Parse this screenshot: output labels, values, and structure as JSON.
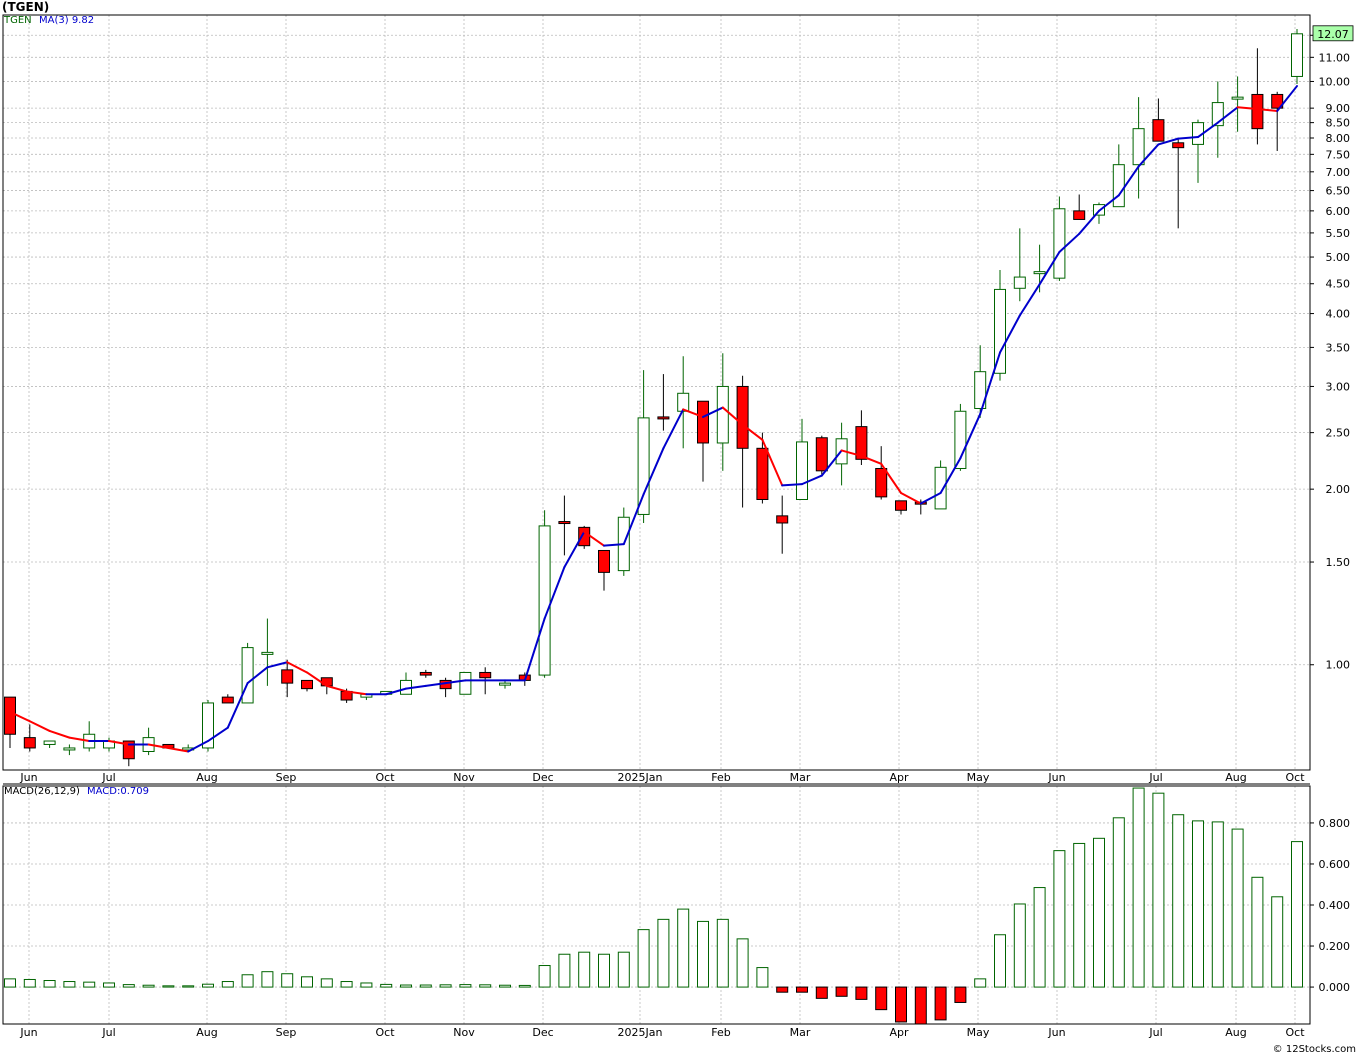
{
  "header": {
    "title": "(TGEN)",
    "symbol": "TGEN",
    "ma_legend": "MA(3)  9.82",
    "macd_legend": "MACD(26,12,9)",
    "macd_value": "MACD:0.709",
    "footer": "© 12Stocks.com"
  },
  "colors": {
    "up": "#006400",
    "down": "#ff0000",
    "ma_up": "#0000cc",
    "ma_down": "#ff0000",
    "grid": "#bbbbbb",
    "price_tag_bg": "#aaffaa"
  },
  "chart_data": [
    {
      "type": "candlestick",
      "scale": "log",
      "y_ticks": [
        "1.00",
        "1.50",
        "2.00",
        "2.50",
        "3.00",
        "3.50",
        "4.00",
        "4.50",
        "5.00",
        "5.50",
        "6.00",
        "6.50",
        "7.00",
        "7.50",
        "8.00",
        "8.50",
        "9.00",
        "10.00",
        "11.00",
        "12.00"
      ],
      "y_range": [
        0.66,
        13.0
      ],
      "x_labels": [
        "Jun",
        "Jul",
        "Aug",
        "Sep",
        "Oct",
        "Nov",
        "Dec",
        "2025Jan",
        "Feb",
        "Mar",
        "Apr",
        "May",
        "Jun",
        "Jul",
        "Aug",
        "Oct"
      ],
      "last_price": "12.07",
      "ma_label": "MA(3)",
      "ma_last": 9.82,
      "candles": [
        {
          "o": 0.88,
          "h": 0.88,
          "l": 0.72,
          "c": 0.76
        },
        {
          "o": 0.75,
          "h": 0.79,
          "l": 0.71,
          "c": 0.72
        },
        {
          "o": 0.73,
          "h": 0.74,
          "l": 0.72,
          "c": 0.74
        },
        {
          "o": 0.72,
          "h": 0.73,
          "l": 0.7,
          "c": 0.72
        },
        {
          "o": 0.72,
          "h": 0.8,
          "l": 0.71,
          "c": 0.76
        },
        {
          "o": 0.72,
          "h": 0.75,
          "l": 0.71,
          "c": 0.74
        },
        {
          "o": 0.74,
          "h": 0.74,
          "l": 0.67,
          "c": 0.69
        },
        {
          "o": 0.71,
          "h": 0.78,
          "l": 0.7,
          "c": 0.75
        },
        {
          "o": 0.73,
          "h": 0.73,
          "l": 0.72,
          "c": 0.72
        },
        {
          "o": 0.72,
          "h": 0.73,
          "l": 0.72,
          "c": 0.72
        },
        {
          "o": 0.72,
          "h": 0.87,
          "l": 0.71,
          "c": 0.86
        },
        {
          "o": 0.88,
          "h": 0.89,
          "l": 0.86,
          "c": 0.86
        },
        {
          "o": 0.86,
          "h": 1.09,
          "l": 0.86,
          "c": 1.07
        },
        {
          "o": 1.05,
          "h": 1.2,
          "l": 0.92,
          "c": 1.05
        },
        {
          "o": 0.98,
          "h": 1.02,
          "l": 0.88,
          "c": 0.93
        },
        {
          "o": 0.94,
          "h": 0.94,
          "l": 0.9,
          "c": 0.91
        },
        {
          "o": 0.95,
          "h": 0.94,
          "l": 0.89,
          "c": 0.92
        },
        {
          "o": 0.9,
          "h": 0.91,
          "l": 0.86,
          "c": 0.87
        },
        {
          "o": 0.88,
          "h": 0.89,
          "l": 0.87,
          "c": 0.89
        },
        {
          "o": 0.89,
          "h": 0.9,
          "l": 0.89,
          "c": 0.9
        },
        {
          "o": 0.89,
          "h": 0.97,
          "l": 0.89,
          "c": 0.94
        },
        {
          "o": 0.97,
          "h": 0.98,
          "l": 0.95,
          "c": 0.96
        },
        {
          "o": 0.94,
          "h": 0.95,
          "l": 0.88,
          "c": 0.91
        },
        {
          "o": 0.89,
          "h": 0.97,
          "l": 0.89,
          "c": 0.97
        },
        {
          "o": 0.97,
          "h": 0.99,
          "l": 0.89,
          "c": 0.95
        },
        {
          "o": 0.93,
          "h": 0.94,
          "l": 0.91,
          "c": 0.93
        },
        {
          "o": 0.96,
          "h": 0.97,
          "l": 0.92,
          "c": 0.94
        },
        {
          "o": 0.96,
          "h": 1.84,
          "l": 0.95,
          "c": 1.73
        },
        {
          "o": 1.76,
          "h": 1.95,
          "l": 1.54,
          "c": 1.75
        },
        {
          "o": 1.72,
          "h": 1.73,
          "l": 1.58,
          "c": 1.6
        },
        {
          "o": 1.57,
          "h": 1.57,
          "l": 1.34,
          "c": 1.44
        },
        {
          "o": 1.45,
          "h": 1.86,
          "l": 1.42,
          "c": 1.79
        },
        {
          "o": 1.81,
          "h": 3.2,
          "l": 1.75,
          "c": 2.65
        },
        {
          "o": 2.66,
          "h": 3.15,
          "l": 2.52,
          "c": 2.65
        },
        {
          "o": 2.72,
          "h": 3.38,
          "l": 2.35,
          "c": 2.92
        },
        {
          "o": 2.83,
          "h": 2.83,
          "l": 2.06,
          "c": 2.4
        },
        {
          "o": 2.4,
          "h": 3.42,
          "l": 2.15,
          "c": 3.0
        },
        {
          "o": 3.0,
          "h": 3.13,
          "l": 1.86,
          "c": 2.35
        },
        {
          "o": 2.35,
          "h": 2.5,
          "l": 1.89,
          "c": 1.92
        },
        {
          "o": 1.8,
          "h": 1.95,
          "l": 1.55,
          "c": 1.75
        },
        {
          "o": 1.92,
          "h": 2.64,
          "l": 1.92,
          "c": 2.41
        },
        {
          "o": 2.45,
          "h": 2.47,
          "l": 2.12,
          "c": 2.15
        },
        {
          "o": 2.21,
          "h": 2.6,
          "l": 2.03,
          "c": 2.44
        },
        {
          "o": 2.56,
          "h": 2.73,
          "l": 2.2,
          "c": 2.25
        },
        {
          "o": 2.17,
          "h": 2.37,
          "l": 1.92,
          "c": 1.94
        },
        {
          "o": 1.91,
          "h": 1.91,
          "l": 1.81,
          "c": 1.84
        },
        {
          "o": 1.9,
          "h": 1.92,
          "l": 1.81,
          "c": 1.89
        },
        {
          "o": 1.85,
          "h": 2.24,
          "l": 1.85,
          "c": 2.18
        },
        {
          "o": 2.17,
          "h": 2.8,
          "l": 2.15,
          "c": 2.72
        },
        {
          "o": 2.75,
          "h": 3.53,
          "l": 2.65,
          "c": 3.18
        },
        {
          "o": 3.16,
          "h": 4.75,
          "l": 3.07,
          "c": 4.4
        },
        {
          "o": 4.42,
          "h": 5.6,
          "l": 4.2,
          "c": 4.62
        },
        {
          "o": 4.7,
          "h": 5.25,
          "l": 4.35,
          "c": 4.72
        },
        {
          "o": 4.6,
          "h": 6.35,
          "l": 4.55,
          "c": 6.05
        },
        {
          "o": 6.0,
          "h": 6.4,
          "l": 5.8,
          "c": 5.8
        },
        {
          "o": 5.9,
          "h": 6.2,
          "l": 5.7,
          "c": 6.15
        },
        {
          "o": 6.1,
          "h": 7.8,
          "l": 6.1,
          "c": 7.2
        },
        {
          "o": 7.2,
          "h": 9.4,
          "l": 6.3,
          "c": 8.3
        },
        {
          "o": 8.6,
          "h": 9.35,
          "l": 7.9,
          "c": 7.9
        },
        {
          "o": 7.85,
          "h": 8.0,
          "l": 5.6,
          "c": 7.7
        },
        {
          "o": 7.8,
          "h": 8.6,
          "l": 6.7,
          "c": 8.5
        },
        {
          "o": 8.4,
          "h": 10.0,
          "l": 7.4,
          "c": 9.2
        },
        {
          "o": 9.4,
          "h": 10.2,
          "l": 8.2,
          "c": 9.4
        },
        {
          "o": 9.5,
          "h": 11.4,
          "l": 7.8,
          "c": 8.3
        },
        {
          "o": 9.5,
          "h": 9.6,
          "l": 7.6,
          "c": 9.0
        },
        {
          "o": 10.2,
          "h": 12.3,
          "l": 9.9,
          "c": 12.07
        }
      ],
      "ma": [
        0.83,
        0.8,
        0.77,
        0.75,
        0.74,
        0.74,
        0.73,
        0.73,
        0.72,
        0.71,
        0.74,
        0.78,
        0.93,
        0.99,
        1.01,
        0.97,
        0.92,
        0.9,
        0.89,
        0.89,
        0.91,
        0.92,
        0.93,
        0.94,
        0.94,
        0.94,
        0.94,
        1.2,
        1.47,
        1.69,
        1.6,
        1.61,
        1.96,
        2.35,
        2.74,
        2.66,
        2.76,
        2.58,
        2.43,
        2.03,
        2.04,
        2.11,
        2.33,
        2.28,
        2.21,
        1.97,
        1.89,
        1.97,
        2.26,
        2.69,
        3.43,
        3.97,
        4.49,
        5.1,
        5.48,
        6.0,
        6.38,
        7.15,
        7.8,
        7.98,
        8.03,
        8.5,
        9.03,
        8.97,
        8.9,
        9.82
      ]
    },
    {
      "type": "bar",
      "title": "MACD(26,12,9)",
      "value_label": "MACD:0.709",
      "y_ticks": [
        "0.000",
        "0.200",
        "0.400",
        "0.600",
        "0.800"
      ],
      "y_range": [
        -0.18,
        0.98
      ],
      "x_labels": [
        "Jun",
        "Jul",
        "Aug",
        "Sep",
        "Oct",
        "Nov",
        "Dec",
        "2025Jan",
        "Feb",
        "Mar",
        "Apr",
        "May",
        "Jun",
        "Jul",
        "Aug",
        "Oct"
      ],
      "values": [
        0.04,
        0.037,
        0.032,
        0.027,
        0.024,
        0.02,
        0.012,
        0.009,
        0.006,
        0.006,
        0.014,
        0.027,
        0.06,
        0.075,
        0.065,
        0.05,
        0.04,
        0.027,
        0.02,
        0.013,
        0.01,
        0.01,
        0.011,
        0.012,
        0.011,
        0.009,
        0.008,
        0.105,
        0.16,
        0.17,
        0.16,
        0.17,
        0.28,
        0.33,
        0.38,
        0.32,
        0.33,
        0.235,
        0.095,
        -0.025,
        -0.025,
        -0.055,
        -0.045,
        -0.06,
        -0.11,
        -0.17,
        -0.18,
        -0.16,
        -0.075,
        0.04,
        0.255,
        0.405,
        0.485,
        0.665,
        0.7,
        0.725,
        0.825,
        0.97,
        0.945,
        0.84,
        0.81,
        0.805,
        0.77,
        0.535,
        0.44,
        0.709
      ]
    }
  ]
}
